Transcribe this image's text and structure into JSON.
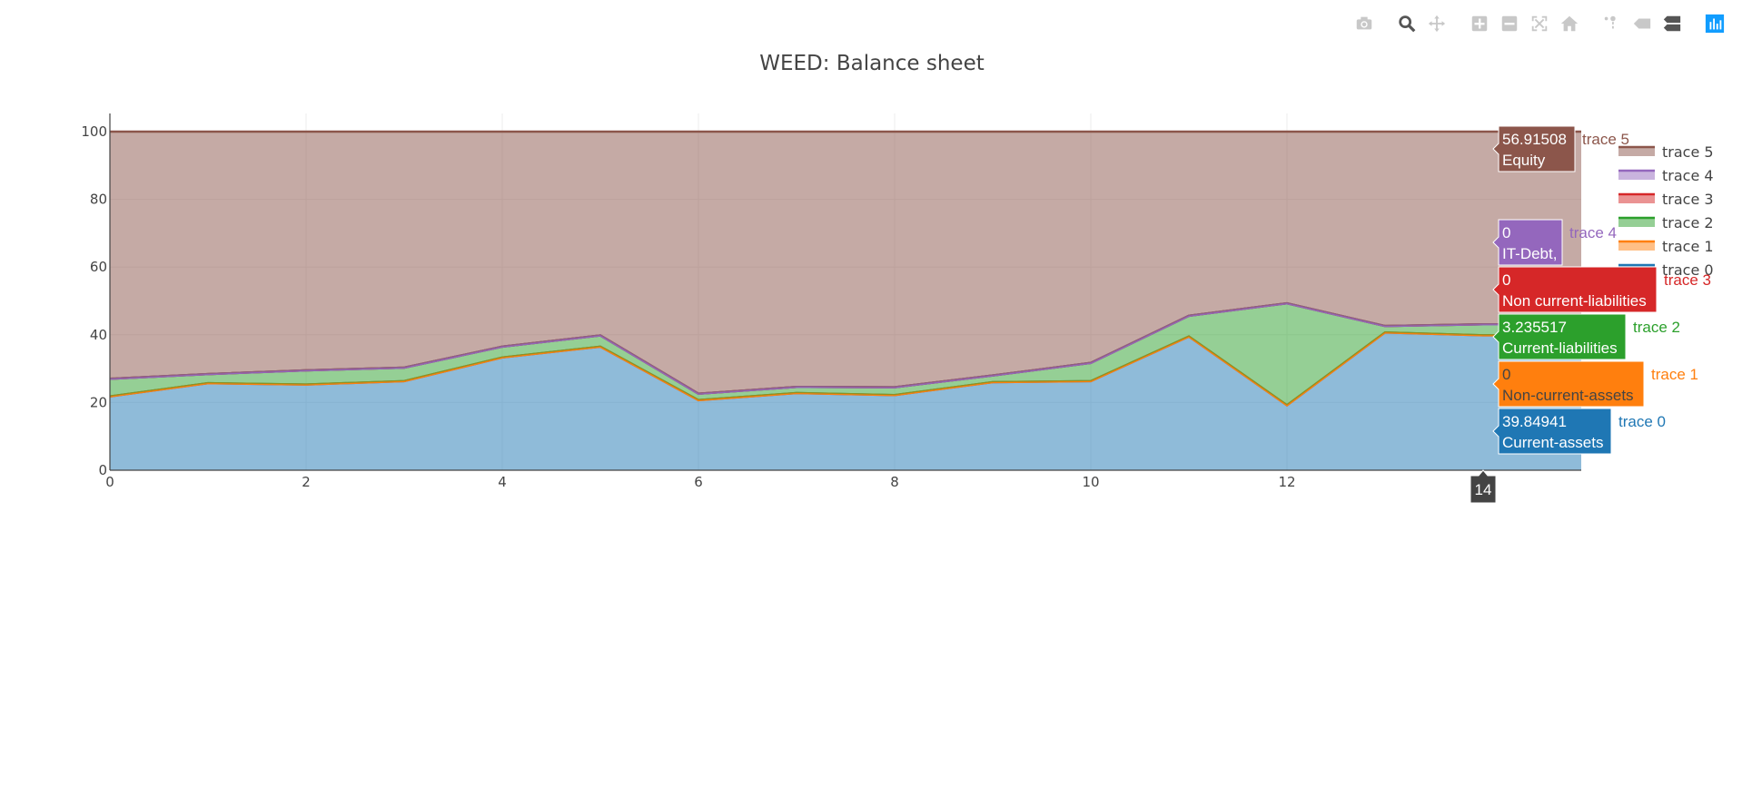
{
  "modebar": {
    "buttons": [
      {
        "name": "camera-icon",
        "title": "Download plot as a png"
      },
      {
        "name": "zoom-icon",
        "title": "Zoom"
      },
      {
        "name": "pan-icon",
        "title": "Pan"
      },
      {
        "name": "zoom-in-icon",
        "title": "Zoom in"
      },
      {
        "name": "zoom-out-icon",
        "title": "Zoom out"
      },
      {
        "name": "autoscale-icon",
        "title": "Autoscale"
      },
      {
        "name": "home-icon",
        "title": "Reset axes"
      },
      {
        "name": "spike-lines-icon",
        "title": "Toggle Spike Lines"
      },
      {
        "name": "hover-closest-icon",
        "title": "Show closest data on hover"
      },
      {
        "name": "hover-compare-icon",
        "title": "Compare data on hover"
      },
      {
        "name": "plotly-logo-icon",
        "title": "Produced with Plotly"
      }
    ]
  },
  "chart_data": {
    "type": "area",
    "title": "WEED: Balance sheet",
    "xlabel": "",
    "ylabel": "",
    "xlim": [
      0,
      15
    ],
    "ylim": [
      0,
      100
    ],
    "x_ticks": [
      0,
      2,
      4,
      6,
      8,
      10,
      12
    ],
    "y_ticks": [
      0,
      20,
      40,
      60,
      80,
      100
    ],
    "grid": true,
    "stacked": true,
    "legend_position": "top-right",
    "x": [
      0,
      1,
      2,
      3,
      4,
      5,
      6,
      7,
      8,
      9,
      10,
      11,
      12,
      13,
      14,
      15
    ],
    "series": [
      {
        "name": "trace 0",
        "label": "Current-assets",
        "color": "#1f77b4",
        "values": [
          21.8,
          25.7,
          25.3,
          26.3,
          33.3,
          36.5,
          20.7,
          22.8,
          22.2,
          26.0,
          26.3,
          39.5,
          19.2,
          40.7,
          39.84941,
          39.84941
        ]
      },
      {
        "name": "trace 1",
        "label": "Non-current-assets",
        "color": "#ff7f0e",
        "values": [
          0,
          0,
          0,
          0,
          0,
          0,
          0,
          0,
          0,
          0,
          0,
          0,
          0,
          0,
          0,
          0
        ]
      },
      {
        "name": "trace 2",
        "label": "Current-liabilities",
        "color": "#2ca02c",
        "values": [
          5.2,
          2.7,
          4.2,
          4.0,
          3.2,
          3.3,
          1.9,
          1.8,
          2.3,
          2.0,
          5.4,
          6.1,
          30.1,
          1.9,
          3.235517,
          3.235517
        ]
      },
      {
        "name": "trace 3",
        "label": "Non current-liabilities",
        "color": "#d62728",
        "values": [
          0,
          0,
          0,
          0,
          0,
          0,
          0,
          0,
          0,
          0,
          0,
          0,
          0,
          0,
          0,
          0
        ]
      },
      {
        "name": "trace 4",
        "label": "IT-Debt,",
        "color": "#9467bd",
        "values": [
          0,
          0,
          0,
          0,
          0,
          0,
          0,
          0,
          0,
          0,
          0,
          0,
          0,
          0,
          0,
          0
        ]
      },
      {
        "name": "trace 5",
        "label": "Equity",
        "color": "#8c564b",
        "values": [
          73.0,
          71.6,
          70.5,
          69.7,
          63.5,
          60.2,
          77.4,
          75.4,
          75.5,
          72.0,
          68.3,
          54.4,
          50.7,
          57.4,
          56.91508,
          56.91508
        ]
      }
    ],
    "hover": {
      "x_label": "14",
      "items": [
        {
          "trace": "trace 5",
          "value": "56.91508",
          "label": "Equity"
        },
        {
          "trace": "trace 4",
          "value": "0",
          "label": "IT-Debt,"
        },
        {
          "trace": "trace 3",
          "value": "0",
          "label": "Non current-liabilities"
        },
        {
          "trace": "trace 2",
          "value": "3.235517",
          "label": "Current-liabilities"
        },
        {
          "trace": "trace 1",
          "value": "0",
          "label": "Non-current-assets"
        },
        {
          "trace": "trace 0",
          "value": "39.84941",
          "label": "Current-assets"
        }
      ]
    },
    "legend": [
      "trace 5",
      "trace 4",
      "trace 3",
      "trace 2",
      "trace 1",
      "trace 0"
    ]
  }
}
